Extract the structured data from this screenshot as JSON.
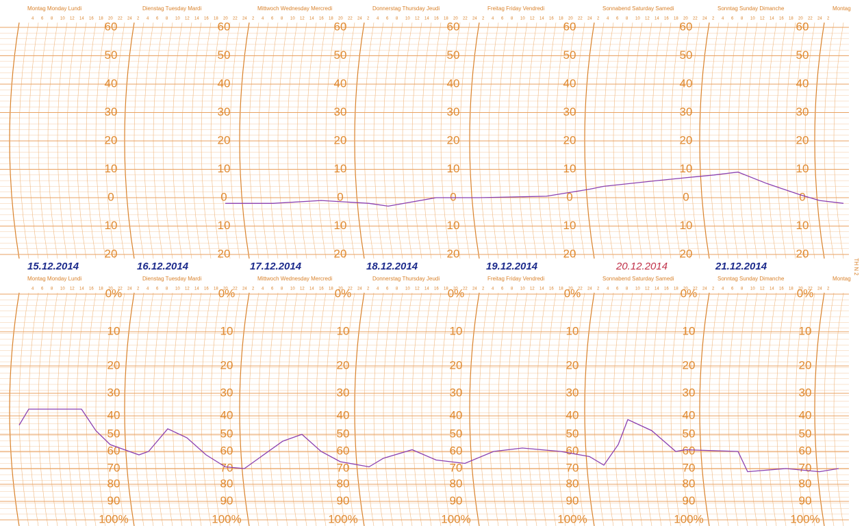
{
  "chart_data": [
    {
      "type": "line",
      "x": [
        43,
        53,
        63,
        73,
        77,
        87,
        96,
        110,
        119,
        122,
        133,
        139,
        145,
        150,
        156,
        163,
        167,
        172
      ],
      "series": [
        {
          "color": "#8a3fb0",
          "values": [
            -2,
            -2,
            -1,
            -2,
            -3,
            0,
            0,
            0.5,
            3,
            4,
            6,
            7,
            8,
            9,
            5,
            1,
            -1,
            -2
          ]
        }
      ],
      "xlim": [
        0,
        172
      ],
      "ylim": [
        -20,
        60
      ],
      "yticks": [
        60,
        50,
        40,
        30,
        20,
        10,
        0,
        {
          "value": -10,
          "label": "10"
        },
        {
          "value": -20,
          "label": "20"
        }
      ]
    },
    {
      "type": "line",
      "x": [
        0,
        2,
        7,
        13,
        16,
        19,
        25,
        27,
        31,
        35,
        39,
        43,
        47,
        50,
        55,
        59,
        63,
        67,
        73,
        76,
        82,
        87,
        93,
        99,
        105,
        113,
        119,
        122,
        125,
        127,
        132,
        137,
        139,
        150,
        152,
        160,
        167,
        171
      ],
      "series": [
        {
          "color": "#8a3fb0",
          "values": [
            45,
            37,
            37,
            37,
            48,
            56,
            62,
            60,
            47,
            52,
            62,
            69,
            70,
            64,
            54,
            50,
            60,
            66,
            69,
            64,
            59,
            65,
            67,
            60,
            58,
            60,
            63,
            68,
            56,
            42,
            48,
            60,
            59,
            60,
            72,
            70,
            72,
            70
          ]
        }
      ],
      "xlim": [
        0,
        172
      ],
      "ylim": [
        0,
        100
      ],
      "yticks": [
        {
          "value": 0,
          "label": "0%"
        },
        10,
        20,
        30,
        40,
        50,
        60,
        70,
        80,
        90,
        {
          "value": 100,
          "label": "100%"
        }
      ]
    }
  ],
  "days": [
    "Montag Monday Lundi",
    "Dienstag Tuesday Mardi",
    "Mittwoch Wednesday Mercredi",
    "Donnerstag Thursday Jeudi",
    "Freitag Friday Vendredi",
    "Sonnabend Saturday Samedi",
    "Sonntag Sunday Dimanche",
    "Montag"
  ],
  "hour_labels": [
    4,
    6,
    8,
    10,
    12,
    14,
    16,
    18,
    20,
    22,
    24,
    2
  ],
  "dates": [
    "15.12.2014",
    "16.12.2014",
    "17.12.2014",
    "18.12.2014",
    "19.12.2014",
    "20.12.2014",
    "21.12.2014"
  ],
  "side_label": "TH N 2"
}
